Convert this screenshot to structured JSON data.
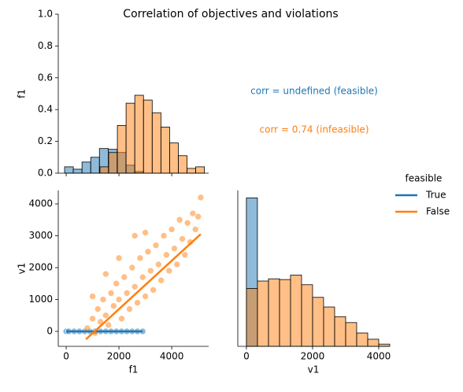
{
  "title": "Correlation of objectives and violations",
  "legend_title": "feasible",
  "annotations": [
    {
      "text": "corr = undefined (feasible)",
      "color": "#1f77b4"
    },
    {
      "text": "corr = 0.74 (infeasible)",
      "color": "#ff7f0e"
    }
  ],
  "chart_data": [
    {
      "type": "histogram",
      "ylabel": "f1",
      "xlim": [
        -300,
        5400
      ],
      "xticks": [
        0,
        2000,
        4000
      ],
      "xtick_labels": false,
      "ylim": [
        0,
        1
      ],
      "yticks": [
        {
          "value": 0,
          "label": "0.0"
        },
        {
          "value": 0.2,
          "label": "0.2"
        },
        {
          "value": 0.4,
          "label": "0.4"
        },
        {
          "value": 0.6,
          "label": "0.6"
        },
        {
          "value": 0.8,
          "label": "0.8"
        },
        {
          "value": 1,
          "label": "1.0"
        }
      ],
      "series": [
        {
          "color": "#1f77b4",
          "bins": [
            -60,
            270,
            600,
            930,
            1260,
            1600,
            1930,
            2270,
            2600,
            2930
          ],
          "values": [
            0.04,
            0.025,
            0.07,
            0.1,
            0.155,
            0.15,
            0.13,
            0.05,
            0.01
          ]
        },
        {
          "color": "#ff7f0e",
          "bins": [
            1280,
            1610,
            1940,
            2270,
            2600,
            2930,
            3260,
            3590,
            3920,
            4250,
            4580,
            4910,
            5240
          ],
          "values": [
            0.04,
            0.13,
            0.3,
            0.44,
            0.49,
            0.46,
            0.38,
            0.29,
            0.19,
            0.11,
            0.03,
            0.04
          ]
        }
      ]
    },
    {
      "type": "scatter",
      "xlabel": "f1",
      "ylabel": "v1",
      "xlim": [
        -300,
        5400
      ],
      "xticks": [
        0,
        2000,
        4000
      ],
      "ylim": [
        -470,
        4420
      ],
      "yticks": [
        0,
        1000,
        2000,
        3000,
        4000
      ],
      "series": [
        {
          "name": "True",
          "color": "#1f77b4",
          "x": [
            0,
            100,
            300,
            500,
            700,
            900,
            1100,
            1300,
            1500,
            1700,
            1900,
            2100,
            2300,
            2500,
            2700,
            2900
          ],
          "values": [
            0,
            0,
            0,
            0,
            0,
            0,
            0,
            0,
            0,
            0,
            0,
            0,
            0,
            0,
            0,
            0
          ]
        },
        {
          "name": "False",
          "color": "#ff7f0e",
          "x": [
            800,
            1000,
            1100,
            1200,
            1300,
            1400,
            1500,
            1600,
            1700,
            1800,
            1900,
            2000,
            2100,
            2200,
            2300,
            2400,
            2500,
            2600,
            2700,
            2800,
            2900,
            3000,
            3100,
            3200,
            3300,
            3400,
            3500,
            3600,
            3700,
            3800,
            3900,
            4000,
            4100,
            4200,
            4300,
            4400,
            4500,
            4600,
            4700,
            4800,
            4900,
            5000,
            5100,
            2000,
            2600,
            3000,
            1500,
            1000
          ],
          "values": [
            100,
            400,
            -50,
            700,
            300,
            1000,
            500,
            200,
            1200,
            800,
            1500,
            1000,
            400,
            1700,
            1200,
            700,
            2000,
            1400,
            900,
            2300,
            1700,
            1100,
            2500,
            1900,
            1300,
            2700,
            2100,
            1600,
            3000,
            2400,
            1900,
            3200,
            2600,
            2100,
            3500,
            2900,
            2400,
            3400,
            2800,
            3700,
            3200,
            3600,
            4200,
            2300,
            3000,
            3100,
            1800,
            1100
          ]
        }
      ],
      "fit_lines": [
        {
          "color": "#1f77b4",
          "x": [
            0,
            2900
          ],
          "values": [
            0,
            0
          ]
        },
        {
          "color": "#ff7f0e",
          "x": [
            750,
            5100
          ],
          "values": [
            -250,
            3050
          ]
        }
      ]
    },
    {
      "type": "histogram",
      "xlabel": "v1",
      "xlim": [
        -260,
        4310
      ],
      "xticks": [
        0,
        2000,
        4000
      ],
      "ylim": [
        0,
        1050
      ],
      "series": [
        {
          "color": "#1f77b4",
          "bins": [
            0,
            333
          ],
          "values": [
            1000
          ]
        },
        {
          "color": "#ff7f0e",
          "bins": [
            0,
            333,
            667,
            1000,
            1333,
            1667,
            2000,
            2333,
            2667,
            3000,
            3333,
            3667,
            4000,
            4333
          ],
          "values": [
            390,
            440,
            455,
            450,
            480,
            415,
            330,
            265,
            200,
            160,
            90,
            48,
            15
          ]
        }
      ]
    }
  ]
}
